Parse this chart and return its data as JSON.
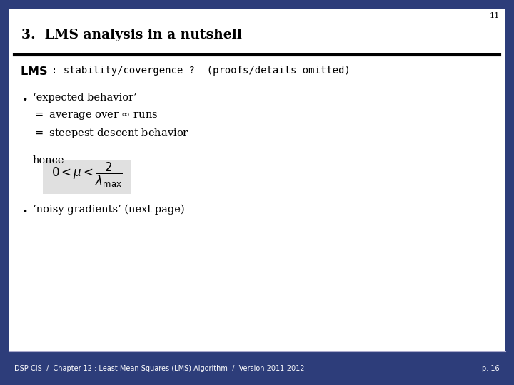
{
  "slide_number": "11",
  "page_number": "p. 16",
  "title": "3.  LMS analysis in a nutshell",
  "footer_text": "DSP-CIS  /  Chapter-12 : Least Mean Squares (LMS) Algorithm  /  Version 2011-2012",
  "bg_color": "#ffffff",
  "footer_bg_color": "#2d3d7a",
  "footer_text_color": "#ffffff",
  "slide_number_color": "#000000",
  "title_color": "#000000",
  "line_color": "#000000",
  "content_color": "#000000",
  "formula_box_color": "#e0e0e0",
  "border_color": "#2d3d7a"
}
